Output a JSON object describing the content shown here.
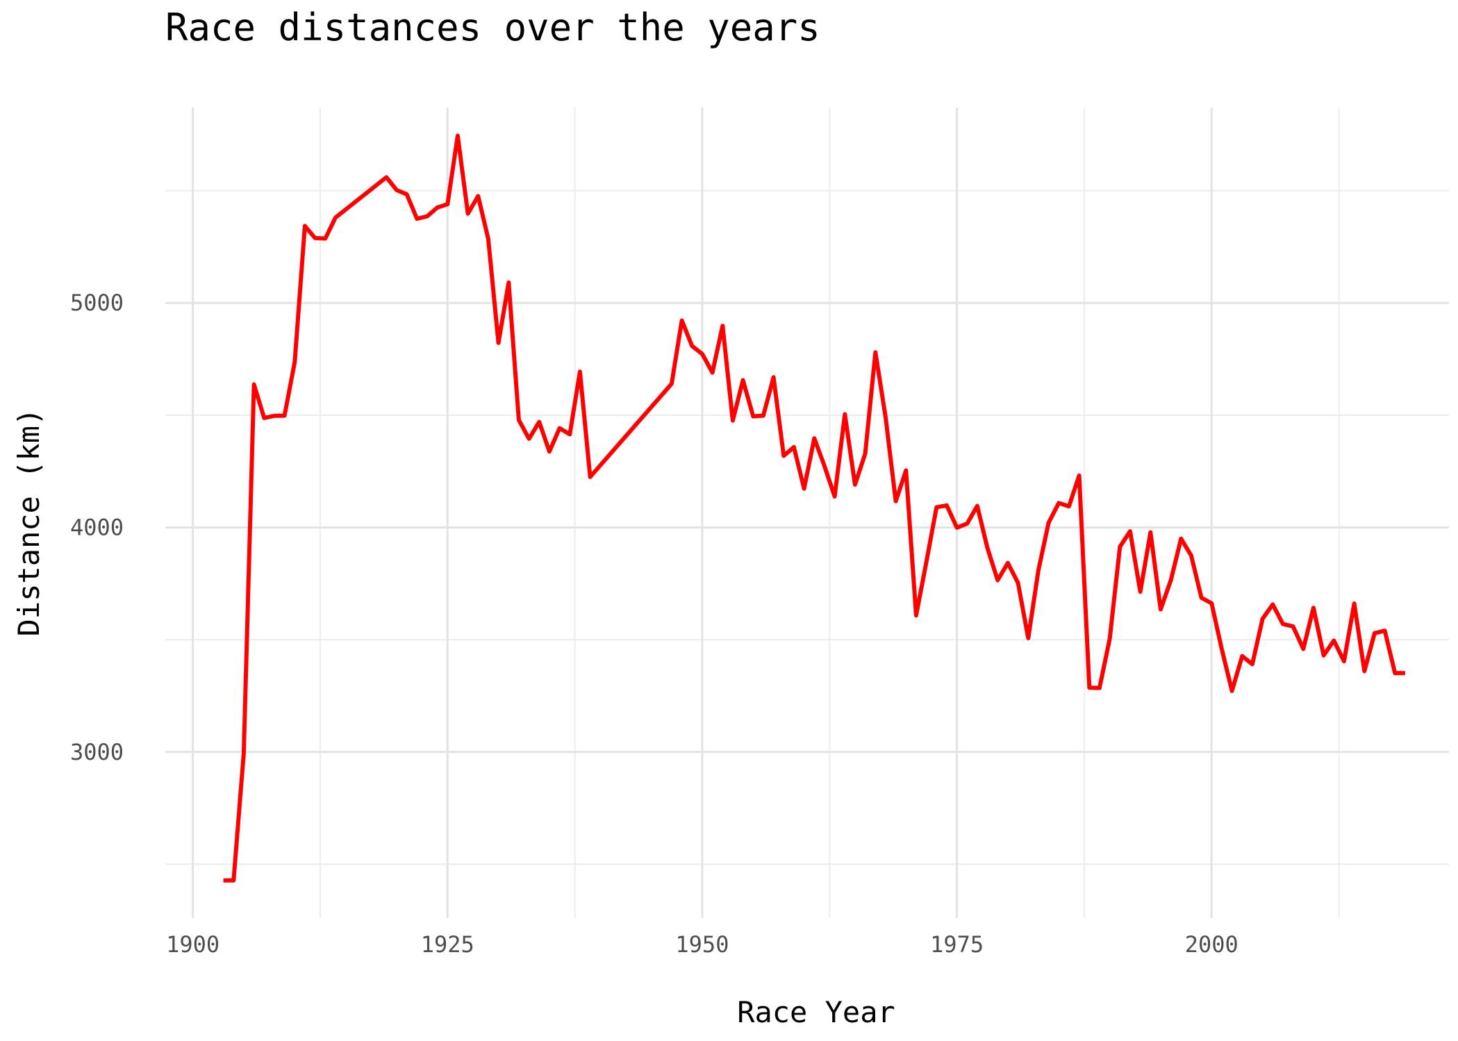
{
  "chart_data": {
    "type": "line",
    "title": "Race distances over the years",
    "xlabel": "Race Year",
    "ylabel": "Distance (km)",
    "xlim": [
      1897.3,
      2023.3
    ],
    "ylim": [
      2260,
      5870
    ],
    "x_ticks": [
      1900,
      1925,
      1950,
      1975,
      2000
    ],
    "y_ticks": [
      3000,
      4000,
      5000
    ],
    "x_tick_labels": [
      "1900",
      "1925",
      "1950",
      "1975",
      "2000"
    ],
    "y_tick_labels": [
      "3000",
      "4000",
      "5000"
    ],
    "x_minor_ticks": [
      1912.5,
      1937.5,
      1962.5,
      1987.5,
      2012.5
    ],
    "y_minor_ticks": [
      2500,
      3500,
      4500,
      5500
    ],
    "grid": true,
    "line_color": "#ff0000",
    "series": [
      {
        "x": [
          1903,
          1904,
          1905,
          1906,
          1907,
          1908,
          1909,
          1910,
          1911,
          1912,
          1913,
          1914,
          1919,
          1920,
          1921,
          1922,
          1923,
          1924,
          1925,
          1926,
          1927,
          1928,
          1929,
          1930,
          1931,
          1932,
          1933,
          1934,
          1935,
          1936,
          1937,
          1938,
          1939,
          1947,
          1948,
          1949,
          1950,
          1951,
          1952,
          1953,
          1954,
          1955,
          1956,
          1957,
          1958,
          1959,
          1960,
          1961,
          1962,
          1963,
          1964,
          1965,
          1966,
          1967,
          1968,
          1969,
          1970,
          1971,
          1972,
          1973,
          1974,
          1975,
          1976,
          1977,
          1978,
          1979,
          1980,
          1981,
          1982,
          1983,
          1984,
          1985,
          1986,
          1987,
          1988,
          1989,
          1990,
          1991,
          1992,
          1993,
          1994,
          1995,
          1996,
          1997,
          1998,
          1999,
          2000,
          2001,
          2002,
          2003,
          2004,
          2005,
          2006,
          2007,
          2008,
          2009,
          2010,
          2011,
          2012,
          2013,
          2014,
          2015,
          2016,
          2017,
          2018,
          2019
        ],
        "values": [
          2428,
          2428,
          2994,
          4637,
          4488,
          4497,
          4498,
          4737,
          5343,
          5289,
          5287,
          5380,
          5560,
          5503,
          5484,
          5375,
          5386,
          5425,
          5440,
          5745,
          5398,
          5476,
          5286,
          4822,
          5091,
          4479,
          4395,
          4470,
          4338,
          4442,
          4415,
          4694,
          4225,
          4640,
          4922,
          4808,
          4773,
          4690,
          4898,
          4476,
          4656,
          4495,
          4498,
          4669,
          4319,
          4358,
          4173,
          4397,
          4274,
          4138,
          4504,
          4191,
          4329,
          4780,
          4492,
          4117,
          4254,
          3608,
          3846,
          4090,
          4098,
          3999,
          4017,
          4096,
          3908,
          3765,
          3842,
          3753,
          3507,
          3809,
          4021,
          4109,
          4094,
          4231,
          3286,
          3285,
          3504,
          3914,
          3983,
          3714,
          3978,
          3635,
          3765,
          3950,
          3875,
          3687,
          3662,
          3458,
          3272,
          3427,
          3391,
          3593,
          3657,
          3570,
          3559,
          3459,
          3642,
          3430,
          3496,
          3404,
          3661,
          3360,
          3529,
          3540,
          3351,
          3351
        ]
      }
    ]
  }
}
